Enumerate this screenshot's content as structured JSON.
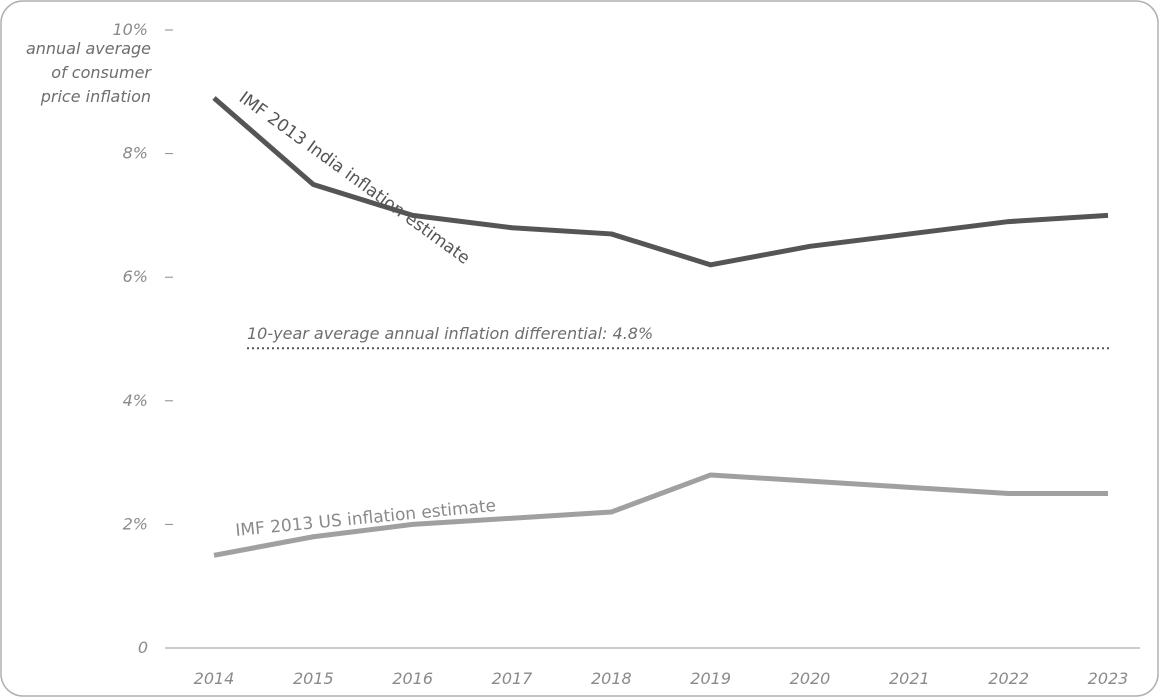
{
  "chart_data": {
    "type": "line",
    "x": [
      "2014",
      "2015",
      "2016",
      "2017",
      "2018",
      "2019",
      "2020",
      "2021",
      "2022",
      "2023"
    ],
    "ylabel": [
      "annual average",
      "of consumer",
      "price inflation"
    ],
    "ylim": [
      0,
      10
    ],
    "y_ticks": [
      {
        "value": 0,
        "label": "0"
      },
      {
        "value": 2,
        "label": "2%"
      },
      {
        "value": 4,
        "label": "4%"
      },
      {
        "value": 6,
        "label": "6%"
      },
      {
        "value": 8,
        "label": "8%"
      },
      {
        "value": 10,
        "label": "10%"
      }
    ],
    "grid": false,
    "series": [
      {
        "name": "IMF 2013 India inflation estimate",
        "label_text": "IMF 2013 India inflation estimate",
        "color": "#555555",
        "values": [
          8.9,
          7.5,
          7.0,
          6.8,
          6.7,
          6.2,
          6.5,
          6.7,
          6.9,
          7.0
        ]
      },
      {
        "name": "IMF 2013 US inflation estimate",
        "label_text": "IMF 2013 US inflation estimate",
        "color": "#a0a0a0",
        "values": [
          1.5,
          1.8,
          2.0,
          2.1,
          2.2,
          2.8,
          2.7,
          2.6,
          2.5,
          2.5
        ]
      }
    ],
    "reference_line": {
      "value": 4.85,
      "label": "10-year average annual inflation differential: 4.8%",
      "style": "dotted",
      "color": "#555555"
    }
  }
}
